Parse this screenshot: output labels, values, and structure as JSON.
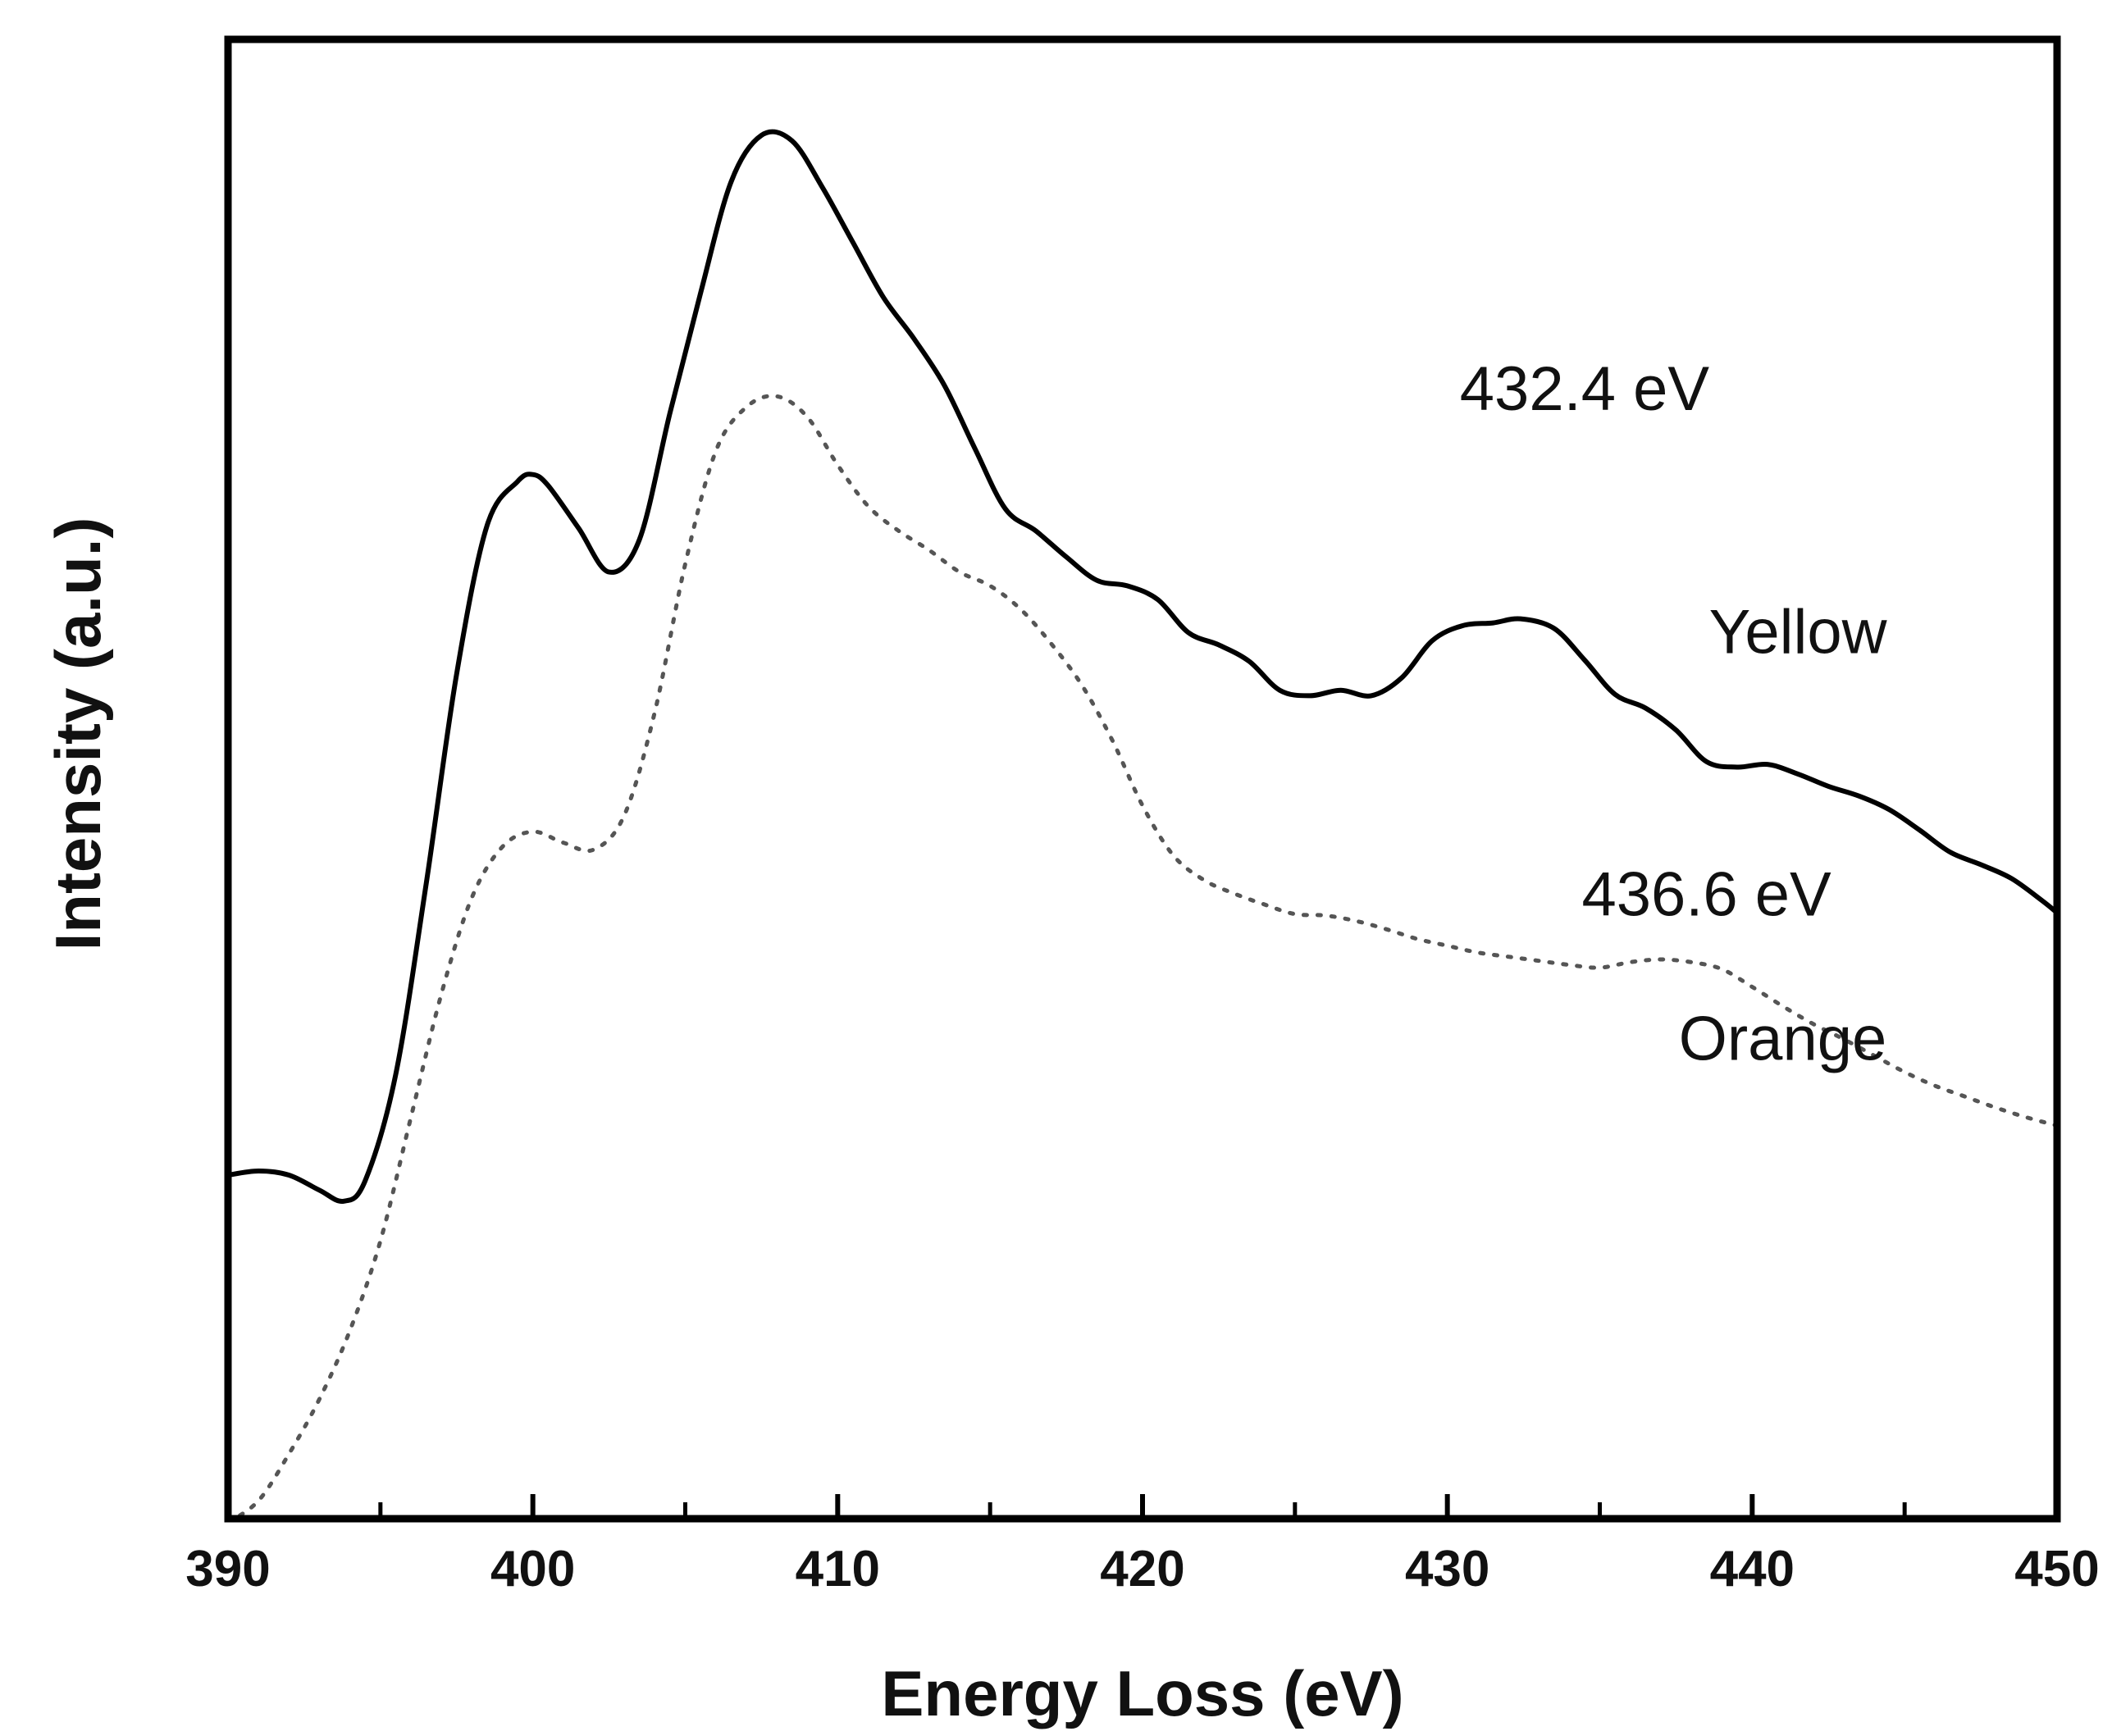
{
  "chart_data": {
    "type": "line",
    "title": "",
    "xlabel": "Energy Loss (eV)",
    "ylabel": "Intensity (a.u.)",
    "xlim": [
      390,
      450
    ],
    "ylim": [
      0,
      1
    ],
    "x_ticks": [
      390,
      400,
      410,
      420,
      430,
      440,
      450
    ],
    "x_minor_ticks": [
      395,
      405,
      415,
      425,
      435,
      445
    ],
    "grid": false,
    "legend": "none",
    "series": [
      {
        "name": "Yellow",
        "style": "solid",
        "color": "#000000",
        "x": [
          390,
          391,
          392,
          393,
          393.8,
          394.5,
          395.5,
          396.5,
          397.5,
          398.5,
          399.5,
          400,
          400.5,
          401.5,
          402.5,
          403.5,
          404.5,
          405.5,
          406.5,
          407.5,
          408.5,
          409.5,
          410.5,
          411.5,
          412.5,
          413.5,
          414.5,
          415.5,
          416.5,
          417.5,
          418.5,
          419.5,
          420.5,
          421.5,
          422.5,
          423.5,
          424.5,
          425.5,
          426.5,
          427.5,
          428.5,
          429.5,
          430.5,
          431.5,
          432.4,
          433.5,
          434.5,
          435.5,
          436.5,
          437.5,
          438.5,
          439.5,
          440.5,
          441.5,
          442.5,
          443.5,
          444.5,
          445.5,
          446.5,
          447.5,
          448.5,
          449.5,
          450
        ],
        "y": [
          0.243,
          0.246,
          0.243,
          0.232,
          0.224,
          0.239,
          0.316,
          0.455,
          0.608,
          0.716,
          0.748,
          0.753,
          0.745,
          0.714,
          0.682,
          0.706,
          0.798,
          0.885,
          0.966,
          1.0,
          0.996,
          0.962,
          0.922,
          0.882,
          0.852,
          0.818,
          0.772,
          0.728,
          0.712,
          0.693,
          0.676,
          0.672,
          0.662,
          0.638,
          0.629,
          0.617,
          0.596,
          0.592,
          0.596,
          0.592,
          0.605,
          0.632,
          0.643,
          0.645,
          0.648,
          0.641,
          0.618,
          0.593,
          0.583,
          0.567,
          0.544,
          0.54,
          0.542,
          0.535,
          0.526,
          0.519,
          0.509,
          0.494,
          0.478,
          0.469,
          0.459,
          0.443,
          0.434
        ]
      },
      {
        "name": "Orange",
        "style": "dotted",
        "color": "#555555",
        "x": [
          390,
          391,
          392,
          393,
          394,
          395,
          396,
          397,
          398,
          399,
          400,
          401,
          402,
          403,
          404,
          405,
          406,
          407,
          408,
          409,
          410,
          411,
          412,
          413,
          414,
          415,
          416,
          417,
          418,
          419,
          420,
          421,
          422,
          423,
          424,
          425,
          426,
          427,
          428,
          429,
          430,
          431,
          432,
          433,
          434,
          435,
          436,
          437,
          438,
          439,
          440,
          441,
          442,
          443,
          444,
          445,
          446,
          447,
          448,
          449,
          450
        ],
        "y": [
          -0.01,
          0.006,
          0.04,
          0.08,
          0.13,
          0.195,
          0.285,
          0.375,
          0.445,
          0.482,
          0.493,
          0.485,
          0.48,
          0.505,
          0.58,
          0.688,
          0.77,
          0.802,
          0.81,
          0.795,
          0.76,
          0.73,
          0.712,
          0.698,
          0.682,
          0.672,
          0.655,
          0.63,
          0.6,
          0.56,
          0.512,
          0.476,
          0.458,
          0.448,
          0.44,
          0.433,
          0.432,
          0.428,
          0.422,
          0.415,
          0.41,
          0.405,
          0.402,
          0.399,
          0.396,
          0.394,
          0.398,
          0.4,
          0.398,
          0.393,
          0.38,
          0.366,
          0.353,
          0.342,
          0.33,
          0.318,
          0.308,
          0.3,
          0.292,
          0.285,
          0.279
        ]
      }
    ],
    "annotations": [
      {
        "text": "432.4 eV",
        "x": 434.5,
        "y": 0.8
      },
      {
        "text": "Yellow",
        "x": 441.5,
        "y": 0.623
      },
      {
        "text": "436.6 eV",
        "x": 438.5,
        "y": 0.432
      },
      {
        "text": "Orange",
        "x": 441,
        "y": 0.327
      }
    ]
  }
}
